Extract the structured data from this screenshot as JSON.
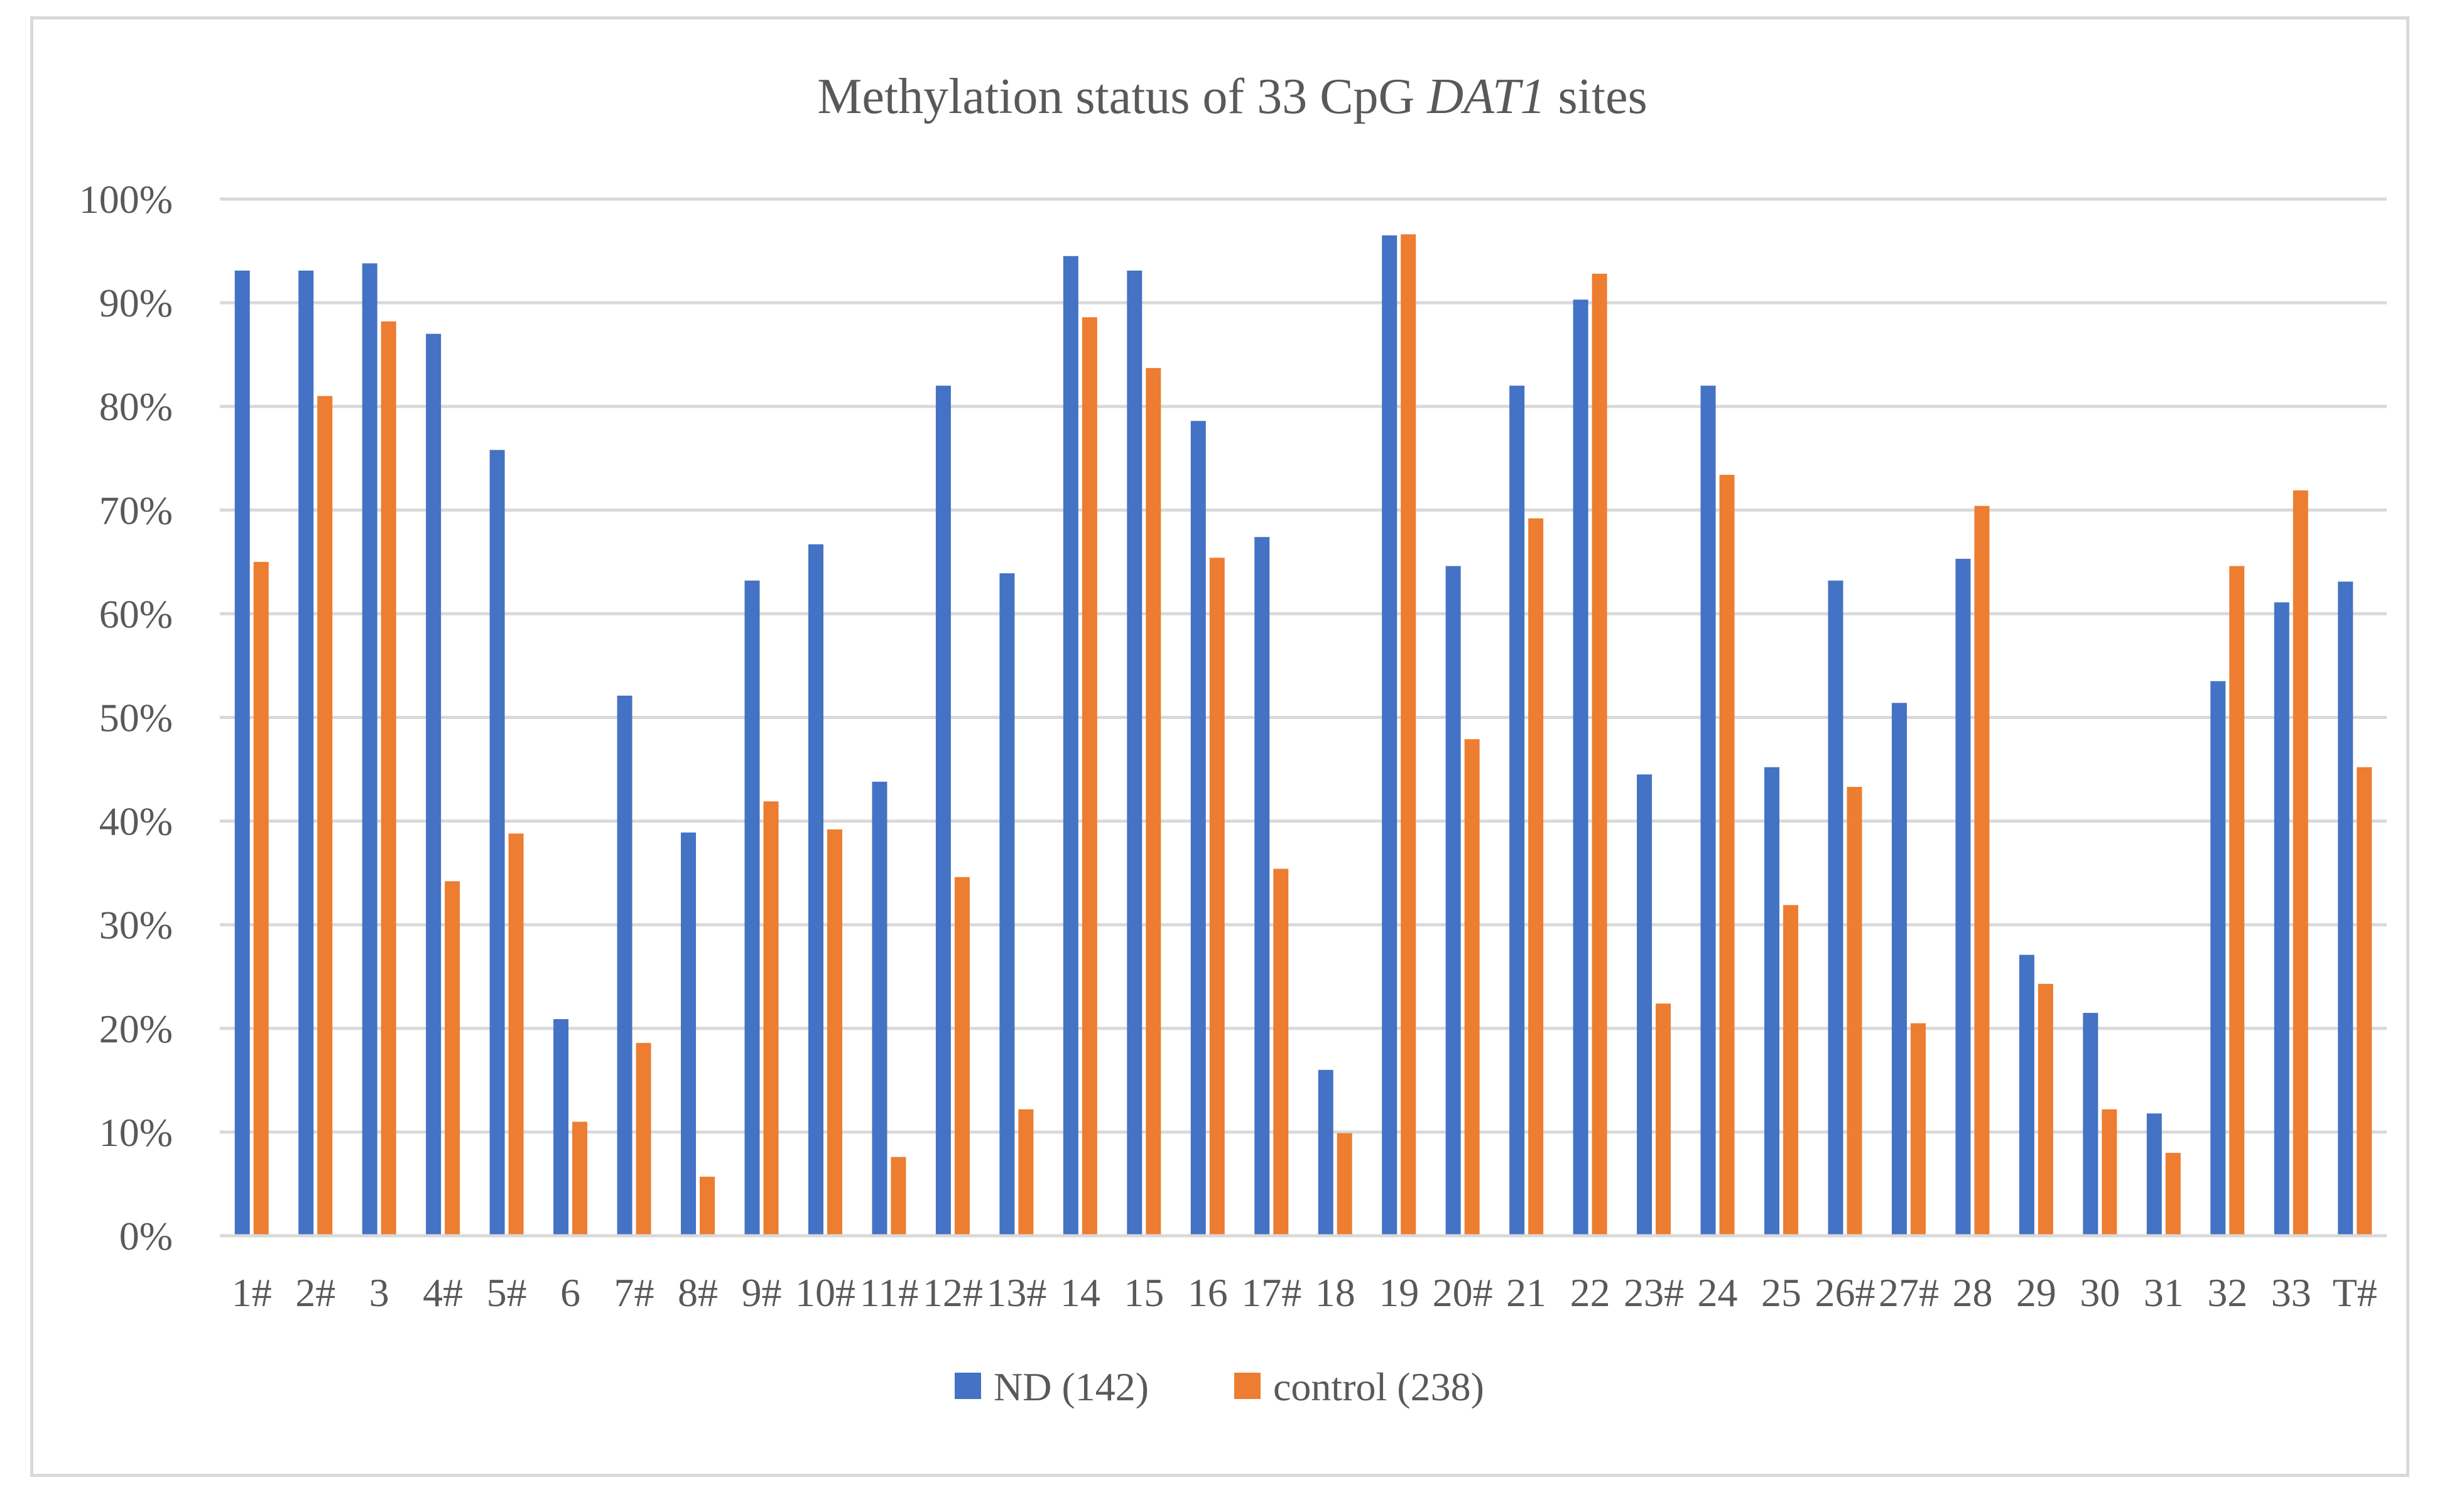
{
  "chart_data": {
    "type": "bar",
    "title_parts": [
      "Methylation status of 33 CpG ",
      "DAT1",
      " sites"
    ],
    "xlabel": "",
    "ylabel": "",
    "ylim": [
      0,
      100
    ],
    "y_ticks": [
      "0%",
      "10%",
      "20%",
      "30%",
      "40%",
      "50%",
      "60%",
      "70%",
      "80%",
      "90%",
      "100%"
    ],
    "categories": [
      "1#",
      "2#",
      "3",
      "4#",
      "5#",
      "6",
      "7#",
      "8#",
      "9#",
      "10#",
      "11#",
      "12#",
      "13#",
      "14",
      "15",
      "16",
      "17#",
      "18",
      "19",
      "20#",
      "21",
      "22",
      "23#",
      "24",
      "25",
      "26#",
      "27#",
      "28",
      "29",
      "30",
      "31",
      "32",
      "33",
      "T#"
    ],
    "series": [
      {
        "name": "ND (142)",
        "color": "#4472c4",
        "values": [
          93.1,
          93.1,
          93.8,
          87.0,
          75.8,
          20.9,
          52.1,
          38.9,
          63.2,
          66.7,
          43.8,
          82.0,
          63.9,
          94.5,
          93.1,
          78.6,
          67.4,
          16.0,
          96.5,
          64.6,
          82.0,
          90.3,
          44.5,
          82.0,
          45.2,
          63.2,
          51.4,
          65.3,
          27.1,
          21.5,
          11.8,
          53.5,
          61.1,
          63.1
        ]
      },
      {
        "name": "control (238)",
        "color": "#ed7d31",
        "values": [
          65.0,
          81.0,
          88.2,
          34.2,
          38.8,
          11.0,
          18.6,
          5.7,
          41.9,
          39.2,
          7.6,
          34.6,
          12.2,
          88.6,
          83.7,
          65.4,
          35.4,
          9.9,
          96.6,
          47.9,
          69.2,
          92.8,
          22.4,
          73.4,
          31.9,
          43.3,
          20.5,
          70.4,
          24.3,
          12.2,
          8.0,
          64.6,
          71.9,
          45.2
        ]
      }
    ],
    "grid": true,
    "legend_position": "bottom"
  }
}
